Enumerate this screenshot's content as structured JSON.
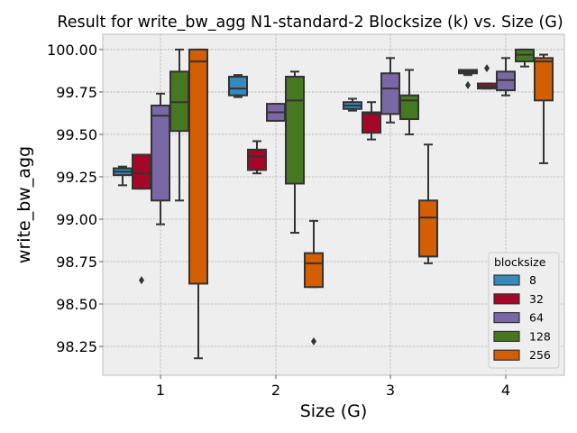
{
  "chart_data": {
    "type": "box",
    "title": "Result for write_bw_agg N1-standard-2 Blocksize (k) vs. Size (G)",
    "xlabel": "Size (G)",
    "ylabel": "write_bw_agg",
    "categories": [
      "1",
      "2",
      "3",
      "4"
    ],
    "ylim": [
      98.08,
      100.09
    ],
    "yticks": [
      98.25,
      98.5,
      98.75,
      99.0,
      99.25,
      99.5,
      99.75,
      100.0
    ],
    "ytick_labels": [
      "98.25",
      "98.50",
      "98.75",
      "99.00",
      "99.25",
      "99.50",
      "99.75",
      "100.00"
    ],
    "grid": true,
    "legend": {
      "title": "blocksize",
      "placement": "lower-right"
    },
    "series": [
      {
        "name": "8",
        "color": "#348abd",
        "boxes": [
          {
            "category": "1",
            "whislo": 99.2,
            "q1": 99.26,
            "med": 99.28,
            "q3": 99.3,
            "whishi": 99.31,
            "fliers": []
          },
          {
            "category": "2",
            "whislo": 99.72,
            "q1": 99.73,
            "med": 99.77,
            "q3": 99.84,
            "whishi": 99.85,
            "fliers": []
          },
          {
            "category": "3",
            "whislo": 99.64,
            "q1": 99.65,
            "med": 99.67,
            "q3": 99.69,
            "whishi": 99.71,
            "fliers": []
          },
          {
            "category": "4",
            "whislo": 99.85,
            "q1": 99.86,
            "med": 99.87,
            "q3": 99.88,
            "whishi": 99.88,
            "fliers": [
              99.79
            ]
          }
        ]
      },
      {
        "name": "32",
        "color": "#a60628",
        "boxes": [
          {
            "category": "1",
            "whislo": 99.18,
            "q1": 99.18,
            "med": 99.27,
            "q3": 99.38,
            "whishi": 99.38,
            "fliers": [
              98.64
            ]
          },
          {
            "category": "2",
            "whislo": 99.27,
            "q1": 99.29,
            "med": 99.37,
            "q3": 99.41,
            "whishi": 99.46,
            "fliers": []
          },
          {
            "category": "3",
            "whislo": 99.47,
            "q1": 99.51,
            "med": 99.62,
            "q3": 99.63,
            "whishi": 99.69,
            "fliers": []
          },
          {
            "category": "4",
            "whislo": 99.77,
            "q1": 99.77,
            "med": 99.78,
            "q3": 99.8,
            "whishi": 99.8,
            "fliers": [
              99.89
            ]
          }
        ]
      },
      {
        "name": "64",
        "color": "#7a68a6",
        "boxes": [
          {
            "category": "1",
            "whislo": 98.97,
            "q1": 99.11,
            "med": 99.61,
            "q3": 99.67,
            "whishi": 99.74,
            "fliers": []
          },
          {
            "category": "2",
            "whislo": 99.58,
            "q1": 99.58,
            "med": 99.63,
            "q3": 99.68,
            "whishi": 99.68,
            "fliers": []
          },
          {
            "category": "3",
            "whislo": 99.57,
            "q1": 99.62,
            "med": 99.77,
            "q3": 99.86,
            "whishi": 99.95,
            "fliers": []
          },
          {
            "category": "4",
            "whislo": 99.73,
            "q1": 99.76,
            "med": 99.82,
            "q3": 99.87,
            "whishi": 99.95,
            "fliers": []
          }
        ]
      },
      {
        "name": "128",
        "color": "#467821",
        "boxes": [
          {
            "category": "1",
            "whislo": 99.11,
            "q1": 99.52,
            "med": 99.69,
            "q3": 99.87,
            "whishi": 100.0,
            "fliers": []
          },
          {
            "category": "2",
            "whislo": 98.92,
            "q1": 99.21,
            "med": 99.7,
            "q3": 99.84,
            "whishi": 99.87,
            "fliers": []
          },
          {
            "category": "3",
            "whislo": 99.5,
            "q1": 99.59,
            "med": 99.7,
            "q3": 99.73,
            "whishi": 99.88,
            "fliers": []
          },
          {
            "category": "4",
            "whislo": 99.9,
            "q1": 99.93,
            "med": 99.97,
            "q3": 100.0,
            "whishi": 100.0,
            "fliers": []
          }
        ]
      },
      {
        "name": "256",
        "color": "#d55e00",
        "boxes": [
          {
            "category": "1",
            "whislo": 98.18,
            "q1": 98.62,
            "med": 99.93,
            "q3": 100.0,
            "whishi": 100.0,
            "fliers": []
          },
          {
            "category": "2",
            "whislo": 98.6,
            "q1": 98.6,
            "med": 98.74,
            "q3": 98.8,
            "whishi": 98.99,
            "fliers": [
              98.28
            ]
          },
          {
            "category": "3",
            "whislo": 98.74,
            "q1": 98.78,
            "med": 99.01,
            "q3": 99.11,
            "whishi": 99.44,
            "fliers": []
          },
          {
            "category": "4",
            "whislo": 99.33,
            "q1": 99.7,
            "med": 99.93,
            "q3": 99.95,
            "whishi": 99.97,
            "fliers": []
          }
        ]
      }
    ]
  }
}
